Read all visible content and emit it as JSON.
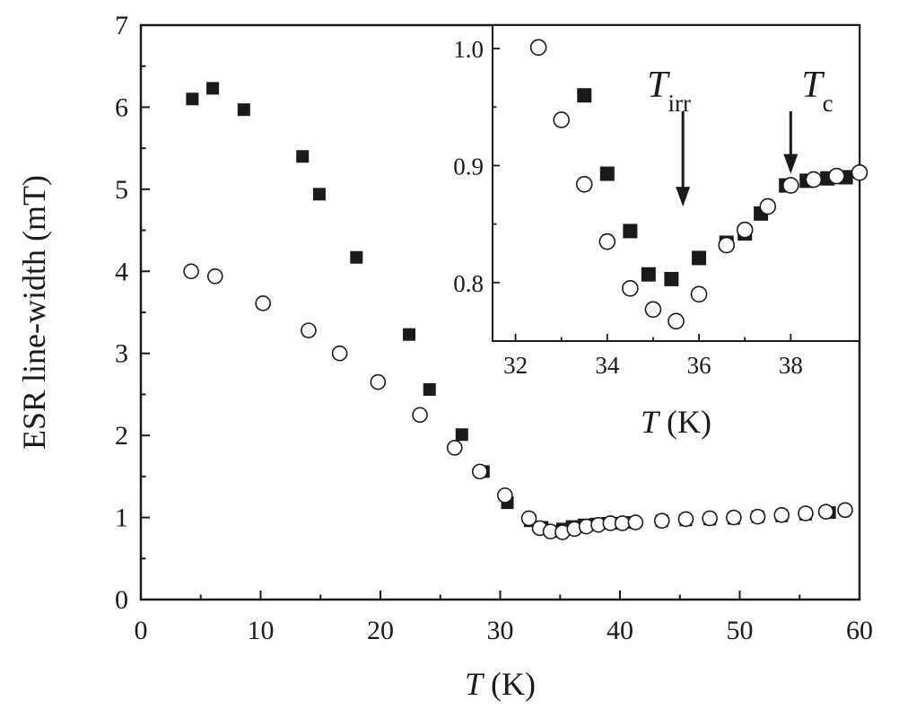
{
  "chart_data": [
    {
      "type": "scatter",
      "title": "",
      "xlabel": "T (K)",
      "xlabel_var": "T",
      "xlabel_unit": "(K)",
      "ylabel": "ESR line-width (mT)",
      "xlim": [
        0,
        60
      ],
      "ylim": [
        0,
        7
      ],
      "xticks": [
        0,
        10,
        20,
        30,
        40,
        50,
        60
      ],
      "yticks": [
        0,
        1,
        2,
        3,
        4,
        5,
        6,
        7
      ],
      "grid": false,
      "series": [
        {
          "marker": "filled-square",
          "color": "#1a1a1a",
          "points": [
            [
              4.3,
              6.1
            ],
            [
              6.0,
              6.23
            ],
            [
              8.6,
              5.97
            ],
            [
              13.5,
              5.4
            ],
            [
              14.9,
              4.94
            ],
            [
              18.0,
              4.17
            ],
            [
              22.4,
              3.23
            ],
            [
              24.1,
              2.56
            ],
            [
              26.8,
              2.01
            ],
            [
              28.6,
              1.56
            ],
            [
              30.6,
              1.18
            ],
            [
              32.5,
              0.96
            ],
            [
              33.5,
              0.88
            ],
            [
              34.5,
              0.83
            ],
            [
              35.2,
              0.86
            ],
            [
              36.0,
              0.89
            ],
            [
              37.0,
              0.91
            ],
            [
              38.0,
              0.92
            ],
            [
              39.0,
              0.93
            ],
            [
              40.0,
              0.93
            ],
            [
              41.0,
              0.94
            ],
            [
              43.5,
              0.96
            ],
            [
              45.5,
              0.97
            ],
            [
              47.5,
              0.98
            ],
            [
              49.5,
              0.99
            ],
            [
              51.5,
              1.01
            ],
            [
              53.5,
              1.02
            ],
            [
              55.5,
              1.04
            ],
            [
              57.5,
              1.06
            ]
          ]
        },
        {
          "marker": "open-circle",
          "color": "#1a1a1a",
          "points": [
            [
              4.2,
              4.0
            ],
            [
              6.2,
              3.94
            ],
            [
              10.2,
              3.61
            ],
            [
              14.0,
              3.28
            ],
            [
              16.6,
              3.0
            ],
            [
              19.8,
              2.65
            ],
            [
              23.3,
              2.25
            ],
            [
              26.2,
              1.85
            ],
            [
              28.3,
              1.56
            ],
            [
              30.4,
              1.27
            ],
            [
              32.4,
              0.99
            ],
            [
              33.3,
              0.87
            ],
            [
              34.2,
              0.83
            ],
            [
              35.2,
              0.82
            ],
            [
              36.2,
              0.86
            ],
            [
              37.2,
              0.89
            ],
            [
              38.2,
              0.91
            ],
            [
              39.2,
              0.93
            ],
            [
              40.2,
              0.93
            ],
            [
              41.3,
              0.94
            ],
            [
              43.5,
              0.96
            ],
            [
              45.5,
              0.98
            ],
            [
              47.5,
              0.99
            ],
            [
              49.5,
              1.0
            ],
            [
              51.5,
              1.01
            ],
            [
              53.5,
              1.03
            ],
            [
              55.5,
              1.05
            ],
            [
              57.2,
              1.07
            ],
            [
              58.8,
              1.09
            ]
          ]
        }
      ]
    },
    {
      "type": "scatter",
      "title": "",
      "xlabel": "T (K)",
      "xlabel_var": "T",
      "xlabel_unit": "(K)",
      "ylabel": "",
      "xlim": [
        31.5,
        39.5
      ],
      "ylim": [
        0.75,
        1.02
      ],
      "xticks": [
        32,
        34,
        36,
        38
      ],
      "yticks": [
        0.8,
        0.9,
        1.0
      ],
      "ytick_labels": [
        "0.8",
        "0.9",
        "1.0"
      ],
      "grid": false,
      "annotations": [
        {
          "label": "T",
          "subscript": "irr",
          "x": 35.65,
          "arrow_tip_y": 0.865
        },
        {
          "label": "T",
          "subscript": "c",
          "x": 38.0,
          "arrow_tip_y": 0.893
        }
      ],
      "series": [
        {
          "marker": "filled-square",
          "color": "#1a1a1a",
          "points": [
            [
              33.5,
              0.96
            ],
            [
              34.0,
              0.893
            ],
            [
              34.5,
              0.844
            ],
            [
              34.9,
              0.807
            ],
            [
              35.4,
              0.803
            ],
            [
              36.0,
              0.821
            ],
            [
              36.6,
              0.834
            ],
            [
              37.0,
              0.842
            ],
            [
              37.35,
              0.859
            ],
            [
              37.9,
              0.883
            ],
            [
              38.35,
              0.887
            ],
            [
              38.8,
              0.889
            ],
            [
              39.2,
              0.89
            ]
          ]
        },
        {
          "marker": "open-circle",
          "color": "#1a1a1a",
          "points": [
            [
              32.5,
              1.001
            ],
            [
              33.0,
              0.939
            ],
            [
              33.5,
              0.884
            ],
            [
              34.0,
              0.835
            ],
            [
              34.5,
              0.795
            ],
            [
              35.0,
              0.777
            ],
            [
              35.5,
              0.767
            ],
            [
              36.0,
              0.79
            ],
            [
              36.6,
              0.832
            ],
            [
              37.0,
              0.845
            ],
            [
              37.5,
              0.865
            ],
            [
              38.0,
              0.883
            ],
            [
              38.5,
              0.888
            ],
            [
              39.0,
              0.891
            ],
            [
              39.5,
              0.894
            ]
          ]
        }
      ]
    }
  ]
}
